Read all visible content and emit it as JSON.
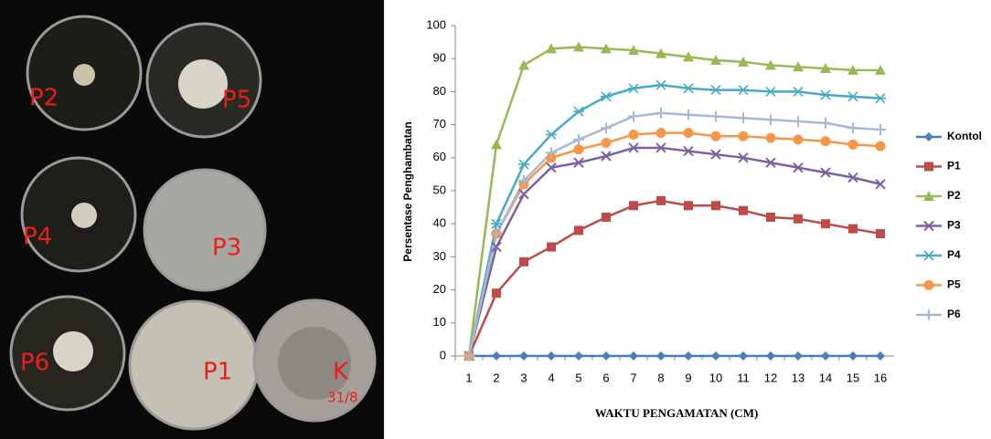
{
  "photo": {
    "labels": [
      "P2",
      "P5",
      "P4",
      "P3",
      "P6",
      "P1",
      "K",
      "31/8"
    ]
  },
  "chart_data": {
    "type": "line",
    "y_label": "Persentase Penghambatan",
    "x_label": "WAKTU PENGAMATAN (CM)",
    "categories": [
      "1",
      "2",
      "3",
      "4",
      "5",
      "6",
      "7",
      "8",
      "9",
      "10",
      "11",
      "12",
      "13",
      "14",
      "15",
      "16"
    ],
    "ylim": [
      0,
      100
    ],
    "yticks": [
      0,
      10,
      20,
      30,
      40,
      50,
      60,
      70,
      80,
      90,
      100
    ],
    "grid": false,
    "legend": "right",
    "series": [
      {
        "name": "Kontol",
        "color": "#4a7ebb",
        "marker": "diamond",
        "values": [
          0,
          0,
          0,
          0,
          0,
          0,
          0,
          0,
          0,
          0,
          0,
          0,
          0,
          0,
          0,
          0
        ]
      },
      {
        "name": "P1",
        "color": "#be4b48",
        "marker": "square",
        "values": [
          0,
          19,
          28.5,
          33,
          38,
          42,
          45.5,
          47,
          45.5,
          45.5,
          44,
          42,
          41.5,
          40,
          38.5,
          37
        ]
      },
      {
        "name": "P2",
        "color": "#98b954",
        "marker": "triangle",
        "values": [
          0,
          64,
          88,
          93,
          93.5,
          93,
          92.5,
          91.5,
          90.5,
          89.5,
          89,
          88,
          87.5,
          87,
          86.5,
          86.5
        ]
      },
      {
        "name": "P3",
        "color": "#7d60a0",
        "marker": "x",
        "values": [
          0,
          33,
          49,
          57,
          58.5,
          60.5,
          63,
          63,
          62,
          61,
          60,
          58.5,
          57,
          55.5,
          54,
          52
        ]
      },
      {
        "name": "P4",
        "color": "#46aac5",
        "marker": "star",
        "values": [
          0,
          40,
          58,
          67,
          74,
          78.5,
          81,
          82,
          81,
          80.5,
          80.5,
          80,
          80,
          79,
          78.5,
          78
        ]
      },
      {
        "name": "P5",
        "color": "#f79646",
        "marker": "circle",
        "values": [
          0,
          37,
          52,
          60,
          62.5,
          64.5,
          67,
          67.5,
          67.5,
          66.5,
          66.5,
          66,
          65.5,
          65,
          64,
          63.5
        ]
      },
      {
        "name": "P6",
        "color": "#a5b8d8",
        "marker": "plus",
        "values": [
          0,
          37,
          53,
          61.5,
          65.5,
          69,
          72.5,
          73.5,
          73,
          72.5,
          72,
          71.5,
          71,
          70.5,
          69,
          68.5
        ]
      }
    ]
  }
}
